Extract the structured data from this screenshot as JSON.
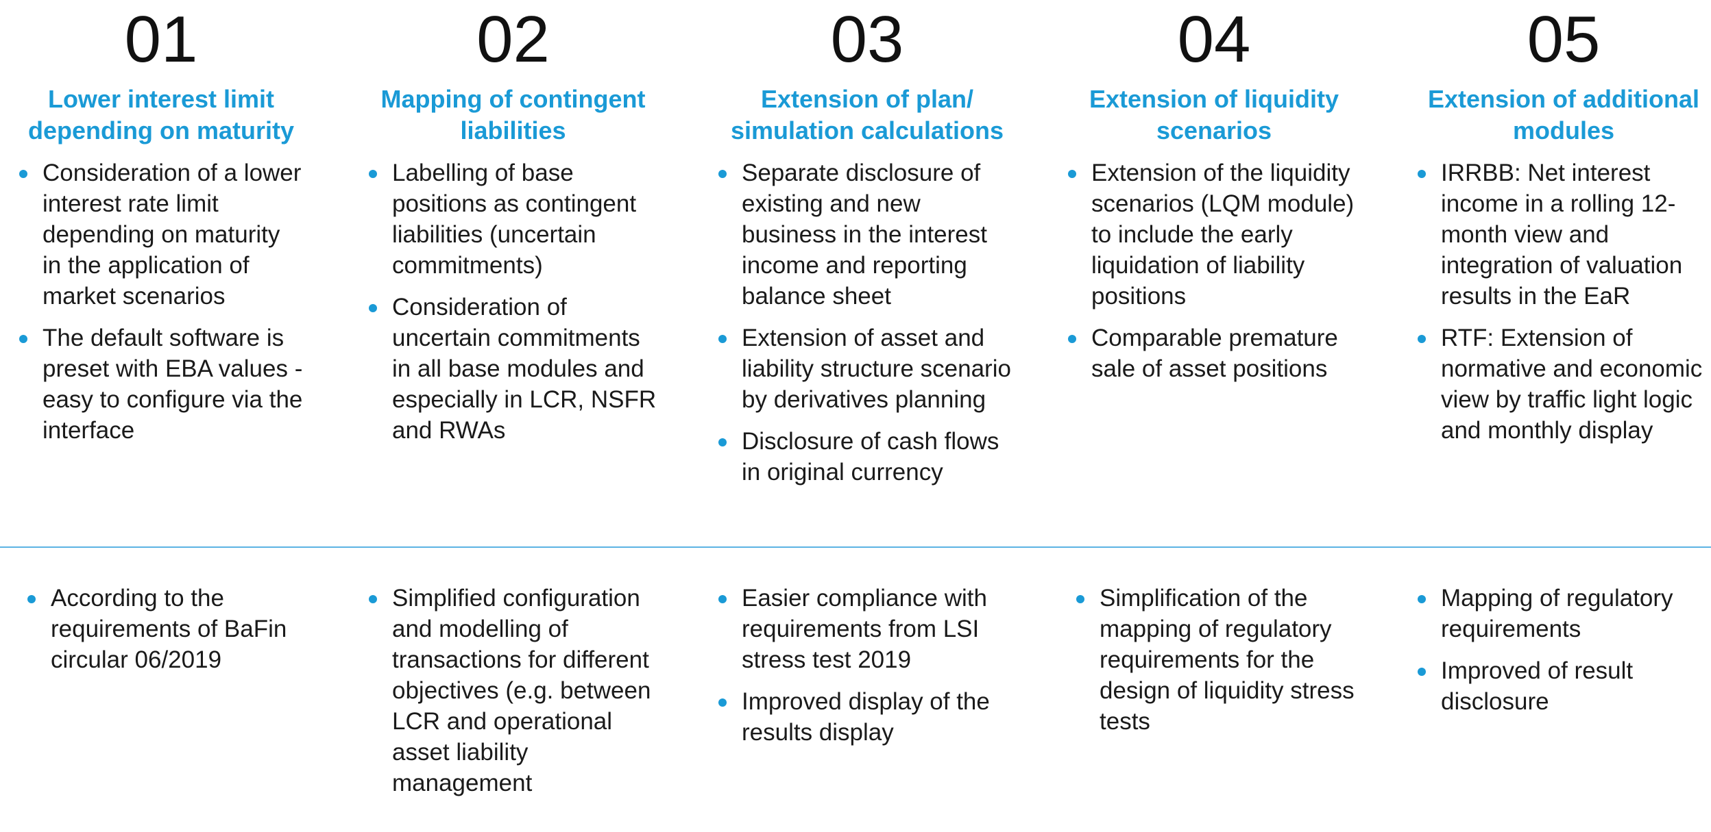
{
  "columns": [
    {
      "number": "01",
      "title_line1": "Lower interest limit",
      "title_line2": "depending on maturity",
      "top_items": [
        "Consideration of a lower interest rate limit depending on maturity in the application of market scenarios",
        "The default software is preset with EBA values - easy to configure via the interface"
      ],
      "bottom_items": [
        "According to the requirements of BaFin circular 06/2019"
      ]
    },
    {
      "number": "02",
      "title_line1": "Mapping of contingent",
      "title_line2": "liabilities",
      "top_items": [
        "Labelling of base positions as contingent liabilities (uncertain commitments)",
        "Consideration of uncertain commitments in all base modules and especially in LCR, NSFR and RWAs"
      ],
      "bottom_items": [
        "Simplified configuration and modelling of transactions for different objectives (e.g. between LCR and operational asset liability management"
      ]
    },
    {
      "number": "03",
      "title_line1": "Extension of plan/",
      "title_line2": "simulation calculations",
      "top_items": [
        "Separate disclosure of existing and new business in the interest income and reporting balance sheet",
        "Extension of asset and liability structure scenario by derivatives planning",
        "Disclosure of cash flows in original currency"
      ],
      "bottom_items": [
        "Easier compliance with requirements from LSI stress test 2019",
        "Improved display of the results display"
      ]
    },
    {
      "number": "04",
      "title_line1": "Extension of liquidity",
      "title_line2": "scenarios",
      "top_items": [
        "Extension of the liquidity scenarios (LQM module) to include the early liquidation of liability positions",
        "Comparable premature sale of asset positions"
      ],
      "bottom_items": [
        "Simplification of the mapping of regulatory requirements for the design of liquidity stress tests"
      ]
    },
    {
      "number": "05",
      "title_line1": "Extension of additional",
      "title_line2": "modules",
      "top_items": [
        "IRRBB: Net interest income in a rolling 12-month view and integration of valuation results in the EaR",
        "RTF: Extension of normative and economic view by traffic light logic and monthly display"
      ],
      "bottom_items": [
        "Mapping of regulatory requirements",
        "Improved of result disclosure"
      ]
    }
  ],
  "colors": {
    "accent": "#1a9ad6",
    "divider": "#5cb3e3",
    "text": "#1a1a1a"
  }
}
